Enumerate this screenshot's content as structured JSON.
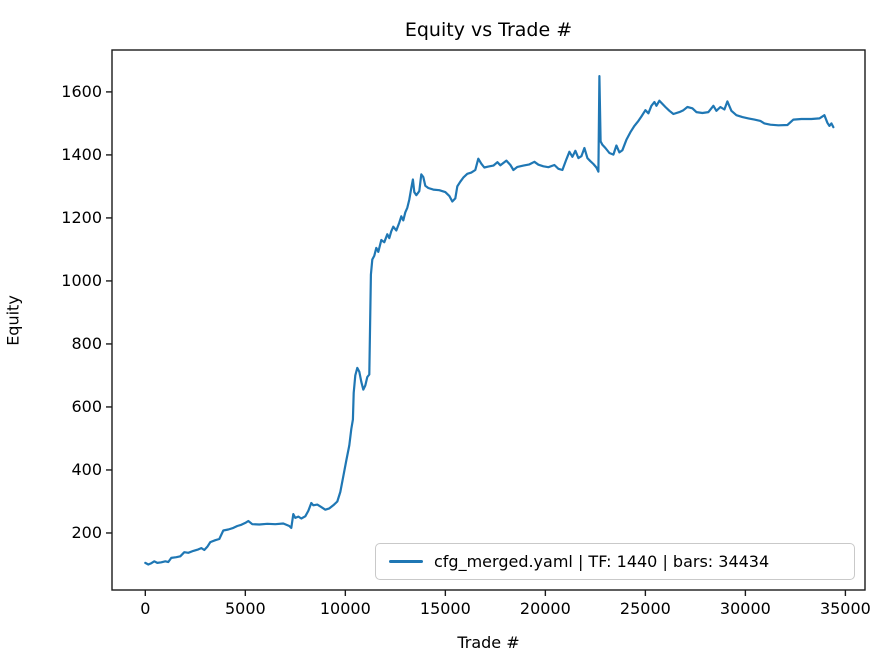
{
  "colors": {
    "line": "#1f77b4",
    "spine": "#1a1a1a",
    "background": "#ffffff",
    "legend_border": "#c9c9c9",
    "text": "#000000"
  },
  "chart_data": {
    "type": "line",
    "title": "Equity vs Trade #",
    "xlabel": "Trade #",
    "ylabel": "Equity",
    "x_ticks": [
      0,
      5000,
      10000,
      15000,
      20000,
      25000,
      30000,
      35000
    ],
    "y_ticks": [
      200,
      400,
      600,
      800,
      1000,
      1200,
      1400,
      1600
    ],
    "xlim": [
      -1665,
      35980
    ],
    "ylim": [
      19,
      1733
    ],
    "grid": false,
    "legend": {
      "position": "lower right",
      "entries": [
        {
          "label": "cfg_merged.yaml | TF: 1440 | bars: 34434",
          "color": "#1f77b4"
        }
      ]
    },
    "series": [
      {
        "name": "cfg_merged.yaml | TF: 1440 | bars: 34434",
        "color": "#1f77b4",
        "points": [
          [
            0,
            105
          ],
          [
            150,
            100
          ],
          [
            300,
            104
          ],
          [
            450,
            110
          ],
          [
            600,
            105
          ],
          [
            800,
            107
          ],
          [
            1000,
            110
          ],
          [
            1150,
            108
          ],
          [
            1300,
            121
          ],
          [
            1550,
            123
          ],
          [
            1750,
            126
          ],
          [
            1950,
            139
          ],
          [
            2150,
            137
          ],
          [
            2400,
            143
          ],
          [
            2650,
            148
          ],
          [
            2800,
            152
          ],
          [
            2950,
            146
          ],
          [
            3100,
            156
          ],
          [
            3250,
            171
          ],
          [
            3500,
            177
          ],
          [
            3700,
            181
          ],
          [
            3900,
            208
          ],
          [
            4150,
            211
          ],
          [
            4400,
            216
          ],
          [
            4600,
            222
          ],
          [
            4800,
            226
          ],
          [
            5000,
            232
          ],
          [
            5150,
            238
          ],
          [
            5350,
            228
          ],
          [
            5700,
            227
          ],
          [
            6100,
            229
          ],
          [
            6500,
            228
          ],
          [
            6900,
            230
          ],
          [
            7200,
            222
          ],
          [
            7300,
            216
          ],
          [
            7400,
            260
          ],
          [
            7500,
            248
          ],
          [
            7650,
            252
          ],
          [
            7800,
            246
          ],
          [
            8000,
            253
          ],
          [
            8150,
            270
          ],
          [
            8300,
            295
          ],
          [
            8400,
            288
          ],
          [
            8600,
            290
          ],
          [
            8800,
            282
          ],
          [
            9000,
            274
          ],
          [
            9200,
            278
          ],
          [
            9400,
            288
          ],
          [
            9600,
            300
          ],
          [
            9750,
            330
          ],
          [
            9900,
            380
          ],
          [
            10050,
            430
          ],
          [
            10200,
            478
          ],
          [
            10300,
            530
          ],
          [
            10380,
            560
          ],
          [
            10420,
            645
          ],
          [
            10500,
            700
          ],
          [
            10600,
            724
          ],
          [
            10700,
            712
          ],
          [
            10800,
            680
          ],
          [
            10900,
            655
          ],
          [
            11000,
            668
          ],
          [
            11100,
            695
          ],
          [
            11200,
            703
          ],
          [
            11280,
            1020
          ],
          [
            11350,
            1068
          ],
          [
            11450,
            1080
          ],
          [
            11550,
            1105
          ],
          [
            11650,
            1092
          ],
          [
            11800,
            1130
          ],
          [
            11950,
            1123
          ],
          [
            12100,
            1148
          ],
          [
            12200,
            1136
          ],
          [
            12300,
            1158
          ],
          [
            12400,
            1172
          ],
          [
            12550,
            1160
          ],
          [
            12700,
            1185
          ],
          [
            12800,
            1205
          ],
          [
            12900,
            1192
          ],
          [
            13000,
            1218
          ],
          [
            13100,
            1232
          ],
          [
            13200,
            1258
          ],
          [
            13300,
            1295
          ],
          [
            13380,
            1322
          ],
          [
            13450,
            1282
          ],
          [
            13550,
            1272
          ],
          [
            13700,
            1285
          ],
          [
            13800,
            1338
          ],
          [
            13900,
            1330
          ],
          [
            14000,
            1302
          ],
          [
            14150,
            1295
          ],
          [
            14400,
            1290
          ],
          [
            14700,
            1288
          ],
          [
            15000,
            1282
          ],
          [
            15200,
            1270
          ],
          [
            15350,
            1252
          ],
          [
            15500,
            1262
          ],
          [
            15600,
            1300
          ],
          [
            15750,
            1315
          ],
          [
            15900,
            1328
          ],
          [
            16100,
            1340
          ],
          [
            16300,
            1344
          ],
          [
            16500,
            1352
          ],
          [
            16650,
            1388
          ],
          [
            16800,
            1372
          ],
          [
            16950,
            1360
          ],
          [
            17150,
            1363
          ],
          [
            17400,
            1366
          ],
          [
            17600,
            1377
          ],
          [
            17750,
            1367
          ],
          [
            18050,
            1382
          ],
          [
            18250,
            1368
          ],
          [
            18400,
            1352
          ],
          [
            18600,
            1362
          ],
          [
            18900,
            1366
          ],
          [
            19200,
            1370
          ],
          [
            19450,
            1378
          ],
          [
            19650,
            1369
          ],
          [
            19900,
            1364
          ],
          [
            20150,
            1361
          ],
          [
            20450,
            1368
          ],
          [
            20650,
            1356
          ],
          [
            20850,
            1352
          ],
          [
            21050,
            1386
          ],
          [
            21200,
            1410
          ],
          [
            21350,
            1394
          ],
          [
            21500,
            1413
          ],
          [
            21650,
            1390
          ],
          [
            21800,
            1396
          ],
          [
            21950,
            1422
          ],
          [
            22100,
            1390
          ],
          [
            22250,
            1380
          ],
          [
            22400,
            1371
          ],
          [
            22550,
            1360
          ],
          [
            22650,
            1347
          ],
          [
            22700,
            1650
          ],
          [
            22760,
            1443
          ],
          [
            22850,
            1432
          ],
          [
            23000,
            1422
          ],
          [
            23200,
            1406
          ],
          [
            23400,
            1401
          ],
          [
            23550,
            1430
          ],
          [
            23700,
            1408
          ],
          [
            23850,
            1415
          ],
          [
            24050,
            1448
          ],
          [
            24250,
            1472
          ],
          [
            24450,
            1492
          ],
          [
            24650,
            1508
          ],
          [
            24800,
            1522
          ],
          [
            25000,
            1542
          ],
          [
            25150,
            1532
          ],
          [
            25300,
            1556
          ],
          [
            25450,
            1568
          ],
          [
            25550,
            1556
          ],
          [
            25700,
            1572
          ],
          [
            25850,
            1562
          ],
          [
            26000,
            1552
          ],
          [
            26200,
            1540
          ],
          [
            26400,
            1530
          ],
          [
            26700,
            1536
          ],
          [
            26900,
            1542
          ],
          [
            27100,
            1552
          ],
          [
            27350,
            1548
          ],
          [
            27550,
            1536
          ],
          [
            27850,
            1533
          ],
          [
            28150,
            1536
          ],
          [
            28400,
            1556
          ],
          [
            28550,
            1540
          ],
          [
            28750,
            1552
          ],
          [
            28950,
            1544
          ],
          [
            29100,
            1570
          ],
          [
            29300,
            1540
          ],
          [
            29550,
            1526
          ],
          [
            29850,
            1520
          ],
          [
            30150,
            1516
          ],
          [
            30450,
            1512
          ],
          [
            30750,
            1508
          ],
          [
            30950,
            1500
          ],
          [
            31250,
            1496
          ],
          [
            31650,
            1494
          ],
          [
            32100,
            1495
          ],
          [
            32400,
            1512
          ],
          [
            32800,
            1514
          ],
          [
            33300,
            1514
          ],
          [
            33700,
            1516
          ],
          [
            33950,
            1526
          ],
          [
            34100,
            1502
          ],
          [
            34200,
            1492
          ],
          [
            34300,
            1500
          ],
          [
            34400,
            1488
          ]
        ]
      }
    ]
  }
}
